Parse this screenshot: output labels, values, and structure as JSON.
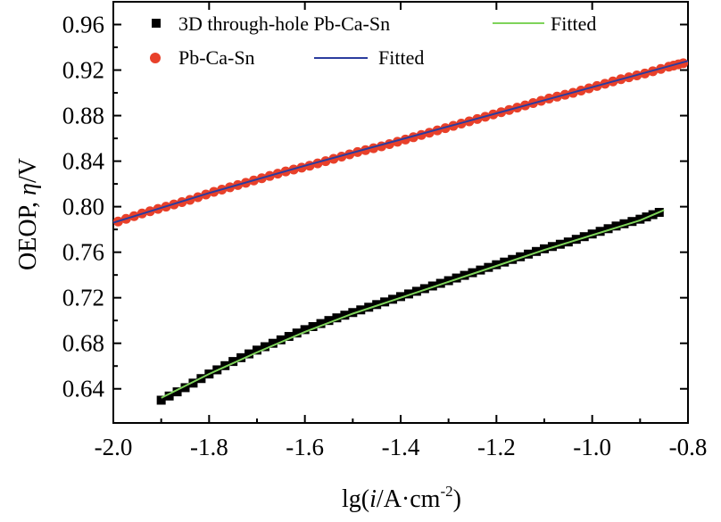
{
  "chart_data": {
    "type": "scatter",
    "xlabel": "lg(i/A·cm⁻²)",
    "xlabel_parts": {
      "prefix": "lg(",
      "italic": "i",
      "mid": "/A·cm",
      "sup": "-2",
      "suffix": ")"
    },
    "ylabel": "OEOP, η/V",
    "ylabel_parts": {
      "prefix": "OEOP, ",
      "italic": "η",
      "suffix": "/V"
    },
    "xlim": [
      -2.0,
      -0.8
    ],
    "ylim": [
      0.61,
      0.98
    ],
    "xticks": [
      -2.0,
      -1.8,
      -1.6,
      -1.4,
      -1.2,
      -1.0,
      -0.8
    ],
    "xtick_labels": [
      "-2.0",
      "-1.8",
      "-1.6",
      "-1.4",
      "-1.2",
      "-1.0",
      "-0.8"
    ],
    "yticks": [
      0.64,
      0.68,
      0.72,
      0.76,
      0.8,
      0.84,
      0.88,
      0.92,
      0.96
    ],
    "ytick_labels": [
      "0.64",
      "0.68",
      "0.72",
      "0.76",
      "0.80",
      "0.84",
      "0.88",
      "0.92",
      "0.96"
    ],
    "grid": false,
    "legend_position": "top",
    "series": [
      {
        "name": "3D through-hole Pb-Ca-Sn",
        "marker": "square",
        "color": "#000000",
        "x": [
          -1.9,
          -1.85,
          -1.8,
          -1.75,
          -1.7,
          -1.65,
          -1.6,
          -1.55,
          -1.5,
          -1.45,
          -1.4,
          -1.35,
          -1.3,
          -1.25,
          -1.2,
          -1.15,
          -1.1,
          -1.05,
          -1.0,
          -0.95,
          -0.9,
          -0.86
        ],
        "y": [
          0.63,
          0.641,
          0.653,
          0.664,
          0.674,
          0.683,
          0.692,
          0.7,
          0.707,
          0.714,
          0.721,
          0.728,
          0.735,
          0.742,
          0.749,
          0.756,
          0.763,
          0.769,
          0.776,
          0.783,
          0.789,
          0.795
        ]
      },
      {
        "name": "Pb-Ca-Sn",
        "marker": "circle",
        "color": "#e8402a",
        "x": [
          -1.99,
          -1.94,
          -1.89,
          -1.84,
          -1.79,
          -1.74,
          -1.69,
          -1.64,
          -1.59,
          -1.54,
          -1.49,
          -1.44,
          -1.39,
          -1.34,
          -1.29,
          -1.24,
          -1.19,
          -1.14,
          -1.09,
          -1.04,
          -0.99,
          -0.94,
          -0.89,
          -0.84,
          -0.81
        ],
        "y": [
          0.787,
          0.794,
          0.8,
          0.806,
          0.813,
          0.819,
          0.825,
          0.831,
          0.836,
          0.842,
          0.848,
          0.853,
          0.859,
          0.865,
          0.871,
          0.877,
          0.883,
          0.889,
          0.895,
          0.9,
          0.906,
          0.912,
          0.917,
          0.923,
          0.926
        ]
      }
    ],
    "fits": [
      {
        "name": "Fitted",
        "color": "#7ed35a",
        "x": [
          -1.9,
          -1.8,
          -1.7,
          -1.6,
          -1.5,
          -1.4,
          -1.3,
          -1.2,
          -1.1,
          -1.0,
          -0.9,
          -0.85
        ],
        "y": [
          0.632,
          0.653,
          0.672,
          0.69,
          0.706,
          0.72,
          0.734,
          0.748,
          0.762,
          0.775,
          0.788,
          0.797
        ]
      },
      {
        "name": "Fitted",
        "color": "#2b3c9e",
        "x": [
          -2.0,
          -1.8,
          -1.6,
          -1.4,
          -1.2,
          -1.0,
          -0.8
        ],
        "y": [
          0.786,
          0.812,
          0.836,
          0.859,
          0.882,
          0.905,
          0.928
        ]
      }
    ]
  }
}
